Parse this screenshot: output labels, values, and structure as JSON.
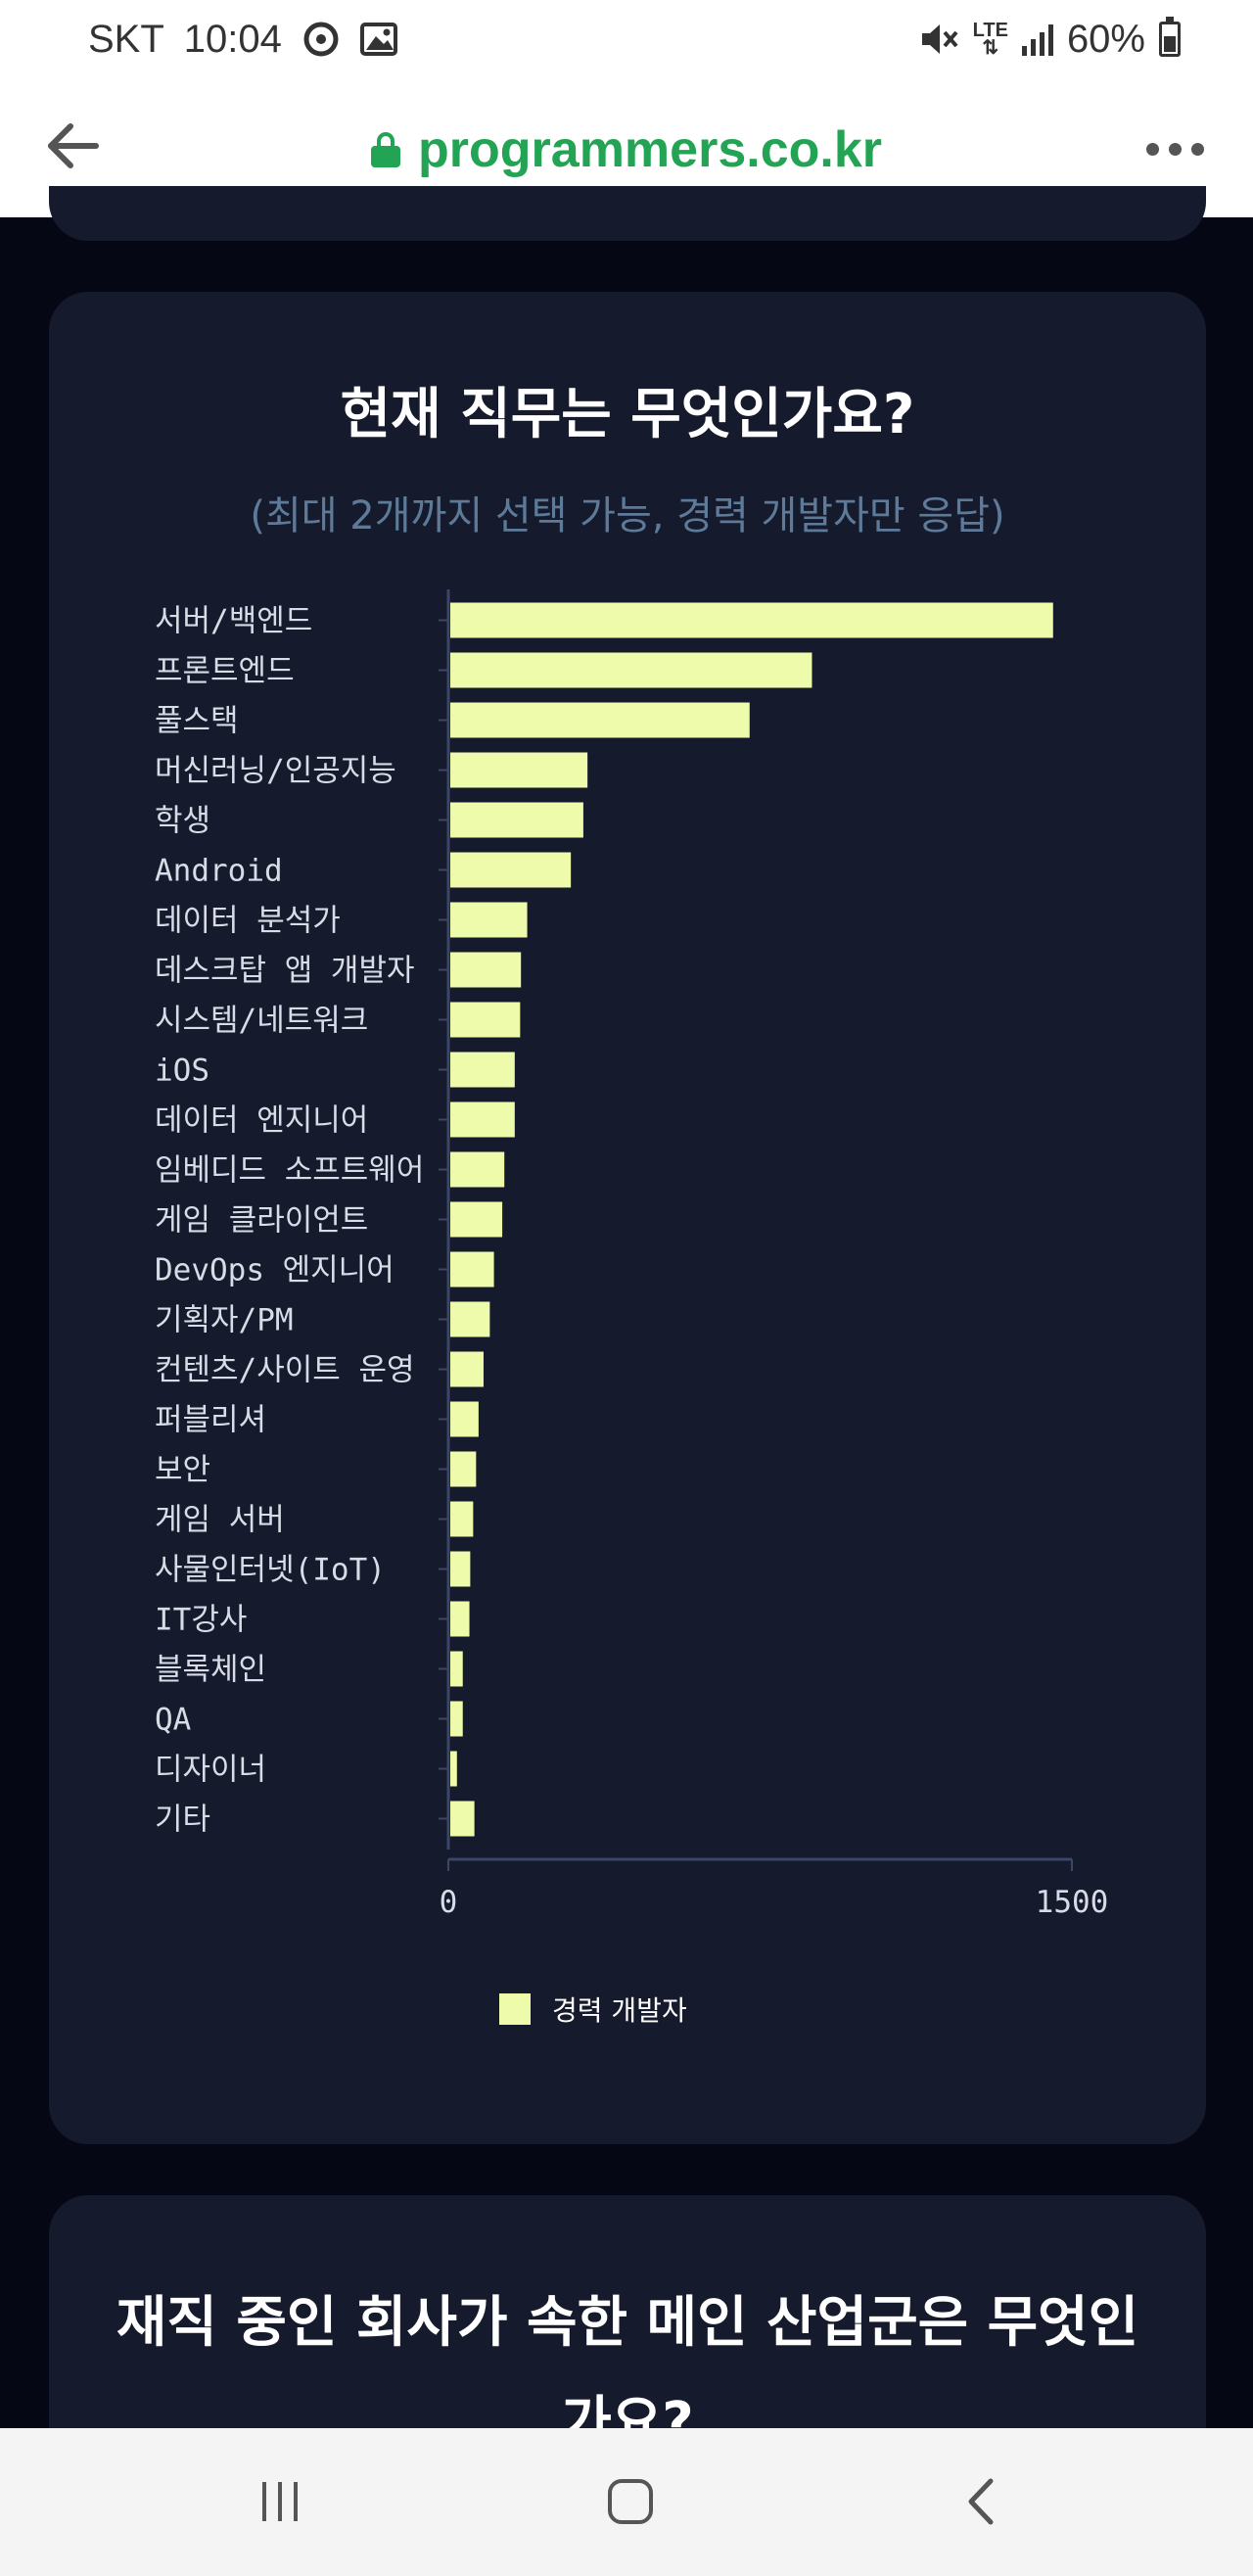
{
  "status_bar": {
    "carrier": "SKT",
    "time": "10:04",
    "network": "LTE",
    "battery": "60%",
    "battery_level": 0.6,
    "icons": [
      "data-saver-icon",
      "image-icon",
      "mute-icon",
      "signal-icon",
      "battery-icon"
    ]
  },
  "browser": {
    "url": "programmers.co.kr",
    "icons": [
      "back-arrow-icon",
      "lock-icon",
      "more-menu-icon"
    ]
  },
  "card": {
    "title": "현재 직무는 무엇인가요?",
    "subtitle": "(최대 2개까지 선택 가능, 경력 개발자만 응답)"
  },
  "chart_data": {
    "type": "bar",
    "orientation": "horizontal",
    "categories": [
      "서버/백엔드",
      "프론트엔드",
      "풀스택",
      "머신러닝/인공지능",
      "학생",
      "Android",
      "데이터 분석가",
      "데스크탑 앱 개발자",
      "시스템/네트워크",
      "iOS",
      "데이터 엔지니어",
      "임베디드 소프트웨어",
      "게임 클라이언트",
      "DevOps 엔지니어",
      "기획자/PM",
      "컨텐츠/사이트 운영",
      "퍼블리셔",
      "보안",
      "게임 서버",
      "사물인터넷(IoT)",
      "IT강사",
      "블록체인",
      "QA",
      "디자이너",
      "기타"
    ],
    "series": [
      {
        "name": "경력 개발자",
        "color": "#eefbaa",
        "values": [
          1450,
          870,
          720,
          330,
          320,
          290,
          185,
          170,
          168,
          155,
          155,
          130,
          125,
          105,
          95,
          80,
          68,
          62,
          55,
          48,
          46,
          30,
          30,
          16,
          58
        ]
      }
    ],
    "xlim": [
      0,
      1500
    ],
    "x_ticks": [
      "0",
      "1500"
    ],
    "legend_position": "bottom-center",
    "grid": false
  },
  "next_card": {
    "title": "재직 중인 회사가 속한 메인 산업군은 무엇인가요?"
  },
  "nav_bar": {
    "icons": [
      "recent-apps-icon",
      "home-icon",
      "back-icon"
    ]
  }
}
